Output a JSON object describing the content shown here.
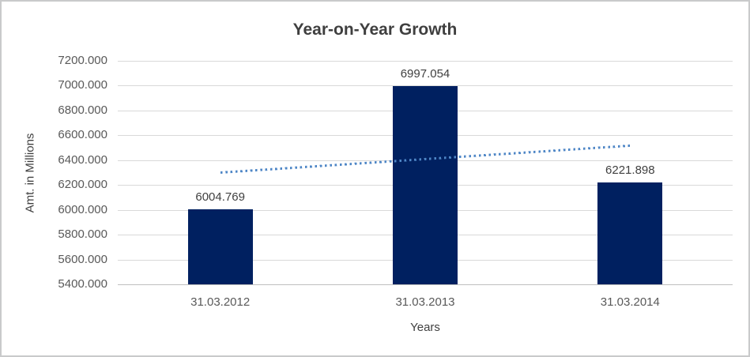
{
  "chart_data": {
    "type": "bar",
    "title": "Year-on-Year Growth",
    "xlabel": "Years",
    "ylabel": "Amt. in Millions",
    "categories": [
      "31.03.2012",
      "31.03.2013",
      "31.03.2014"
    ],
    "values": [
      6004.769,
      6997.054,
      6221.898
    ],
    "value_labels": [
      "6004.769",
      "6997.054",
      "6221.898"
    ],
    "ylim": [
      5400,
      7200
    ],
    "yticks": [
      7200,
      7000,
      6800,
      6600,
      6400,
      6200,
      6000,
      5800,
      5600,
      5400
    ],
    "ytick_labels": [
      "7200.000",
      "7000.000",
      "6800.000",
      "6600.000",
      "6400.000",
      "6200.000",
      "6000.000",
      "5800.000",
      "5600.000",
      "5400.000"
    ],
    "grid": true,
    "legend": "none",
    "trendline": {
      "type": "linear",
      "style": "dotted",
      "start_value": 6299.35,
      "end_value": 6516.48
    }
  },
  "colors": {
    "bar_fill": "#002060",
    "trendline": "#4E86C6",
    "gridline": "#D9D9D9",
    "axis_line": "#BFBFBF",
    "title_text": "#3F3F3F",
    "axis_text": "#595959",
    "data_label_text": "#404040",
    "border": "#C9CACB",
    "background": "#FFFFFF"
  }
}
